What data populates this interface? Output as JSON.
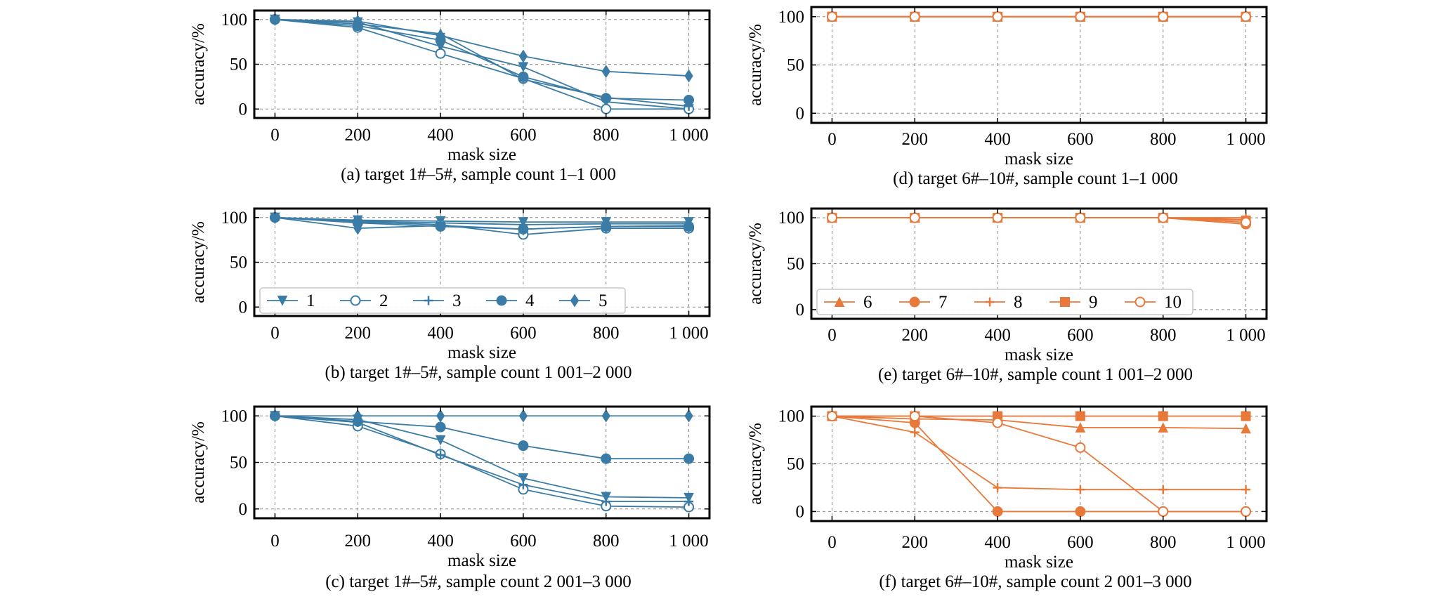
{
  "figure": {
    "colors": {
      "blue": "#3a7ca5",
      "orange": "#e8793a"
    },
    "shared_xlabel": "mask size",
    "shared_ylabel": "accuracy/%",
    "x_tick_labels": [
      "0",
      "200",
      "400",
      "600",
      "800",
      "1 000"
    ],
    "y_tick_labels": [
      "0",
      "50",
      "100"
    ]
  },
  "chart_data": [
    {
      "type": "line",
      "caption": "(a) target 1#–5#, sample count 1–1 000",
      "xlabel": "mask size",
      "ylabel": "accuracy/%",
      "x": [
        0,
        200,
        400,
        600,
        800,
        1000
      ],
      "xlim": [
        -50,
        1050
      ],
      "ylim": [
        -10,
        110
      ],
      "grid": true,
      "legend": "none",
      "series": [
        {
          "name": "1",
          "marker": "triangle-down",
          "values": [
            100,
            97,
            70,
            47,
            8,
            0
          ]
        },
        {
          "name": "2",
          "marker": "circle",
          "values": [
            100,
            91,
            62,
            34,
            0,
            0
          ]
        },
        {
          "name": "3",
          "marker": "plus",
          "values": [
            100,
            95,
            84,
            33,
            13,
            3
          ]
        },
        {
          "name": "4",
          "marker": "circle-filled",
          "values": [
            100,
            93,
            77,
            36,
            12,
            10
          ]
        },
        {
          "name": "5",
          "marker": "diamond",
          "values": [
            100,
            98,
            82,
            59,
            42,
            37
          ]
        }
      ]
    },
    {
      "type": "line",
      "caption": "(b) target 1#–5#, sample count 1 001–2 000",
      "xlabel": "mask size",
      "ylabel": "accuracy/%",
      "x": [
        0,
        200,
        400,
        600,
        800,
        1000
      ],
      "xlim": [
        -50,
        1050
      ],
      "ylim": [
        -10,
        110
      ],
      "grid": true,
      "legend": "bottom-left",
      "series": [
        {
          "name": "1",
          "marker": "triangle-down",
          "values": [
            100,
            97,
            96,
            95,
            95,
            95
          ]
        },
        {
          "name": "2",
          "marker": "circle",
          "values": [
            100,
            95,
            92,
            81,
            88,
            88
          ]
        },
        {
          "name": "3",
          "marker": "plus",
          "values": [
            100,
            96,
            94,
            92,
            93,
            93
          ]
        },
        {
          "name": "4",
          "marker": "circle-filled",
          "values": [
            100,
            94,
            90,
            87,
            90,
            90
          ]
        },
        {
          "name": "5",
          "marker": "diamond",
          "values": [
            100,
            88,
            91,
            87,
            90,
            91
          ]
        }
      ]
    },
    {
      "type": "line",
      "caption": "(c) target 1#–5#, sample count 2 001–3 000",
      "xlabel": "mask size",
      "ylabel": "accuracy/%",
      "x": [
        0,
        200,
        400,
        600,
        800,
        1000
      ],
      "xlim": [
        -50,
        1050
      ],
      "ylim": [
        -10,
        110
      ],
      "grid": true,
      "legend": "none",
      "series": [
        {
          "name": "1",
          "marker": "triangle-down",
          "values": [
            100,
            96,
            74,
            33,
            13,
            12
          ]
        },
        {
          "name": "2",
          "marker": "circle",
          "values": [
            100,
            89,
            59,
            21,
            3,
            2
          ]
        },
        {
          "name": "3",
          "marker": "plus",
          "values": [
            100,
            93,
            58,
            26,
            8,
            8
          ]
        },
        {
          "name": "4",
          "marker": "circle-filled",
          "values": [
            100,
            94,
            88,
            68,
            54,
            54
          ]
        },
        {
          "name": "5",
          "marker": "diamond",
          "values": [
            100,
            100,
            100,
            100,
            100,
            100
          ]
        }
      ]
    },
    {
      "type": "line",
      "caption": "(d) target 6#–10#, sample count 1–1 000",
      "xlabel": "mask size",
      "ylabel": "accuracy/%",
      "x": [
        0,
        200,
        400,
        600,
        800,
        1000
      ],
      "xlim": [
        -50,
        1050
      ],
      "ylim": [
        -10,
        110
      ],
      "grid": true,
      "legend": "none",
      "series": [
        {
          "name": "6",
          "marker": "triangle-up",
          "values": [
            100,
            100,
            100,
            100,
            100,
            100
          ]
        },
        {
          "name": "7",
          "marker": "circle-filled",
          "values": [
            100,
            100,
            100,
            100,
            100,
            100
          ]
        },
        {
          "name": "8",
          "marker": "plus",
          "values": [
            100,
            100,
            100,
            100,
            100,
            100
          ]
        },
        {
          "name": "9",
          "marker": "square",
          "values": [
            100,
            100,
            100,
            100,
            100,
            100
          ]
        },
        {
          "name": "10",
          "marker": "circle",
          "values": [
            100,
            100,
            100,
            100,
            100,
            100
          ]
        }
      ]
    },
    {
      "type": "line",
      "caption": "(e) target 6#–10#, sample count 1 001–2 000",
      "xlabel": "mask size",
      "ylabel": "accuracy/%",
      "x": [
        0,
        200,
        400,
        600,
        800,
        1000
      ],
      "xlim": [
        -50,
        1050
      ],
      "ylim": [
        -10,
        110
      ],
      "grid": true,
      "legend": "bottom-left",
      "series": [
        {
          "name": "6",
          "marker": "triangle-up",
          "values": [
            100,
            100,
            100,
            100,
            100,
            98
          ]
        },
        {
          "name": "7",
          "marker": "circle-filled",
          "values": [
            100,
            100,
            100,
            100,
            100,
            93
          ]
        },
        {
          "name": "8",
          "marker": "plus",
          "values": [
            100,
            100,
            100,
            100,
            100,
            100
          ]
        },
        {
          "name": "9",
          "marker": "square",
          "values": [
            100,
            100,
            100,
            100,
            100,
            97
          ]
        },
        {
          "name": "10",
          "marker": "circle",
          "values": [
            100,
            100,
            100,
            100,
            100,
            95
          ]
        }
      ]
    },
    {
      "type": "line",
      "caption": "(f) target 6#–10#, sample count 2 001–3 000",
      "xlabel": "mask size",
      "ylabel": "accuracy/%",
      "x": [
        0,
        200,
        400,
        600,
        800,
        1000
      ],
      "xlim": [
        -50,
        1050
      ],
      "ylim": [
        -10,
        110
      ],
      "grid": true,
      "legend": "none",
      "series": [
        {
          "name": "6",
          "marker": "triangle-up",
          "values": [
            100,
            97,
            96,
            88,
            88,
            87
          ]
        },
        {
          "name": "7",
          "marker": "circle-filled",
          "values": [
            100,
            93,
            0,
            0,
            0,
            0
          ]
        },
        {
          "name": "8",
          "marker": "plus",
          "values": [
            100,
            83,
            25,
            23,
            23,
            23
          ]
        },
        {
          "name": "9",
          "marker": "square",
          "values": [
            100,
            100,
            100,
            100,
            100,
            100
          ]
        },
        {
          "name": "10",
          "marker": "circle",
          "values": [
            100,
            100,
            93,
            67,
            0,
            0
          ]
        }
      ]
    }
  ]
}
